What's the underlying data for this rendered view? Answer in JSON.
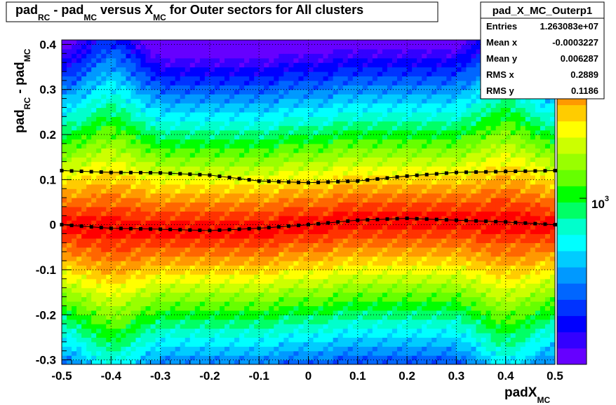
{
  "title": {
    "parts": [
      "pad",
      "RC",
      " - pad",
      "MC",
      " versus X",
      "MC",
      " for Outer sectors for All clusters"
    ]
  },
  "stats": {
    "name": "pad_X_MC_Outerp1",
    "rows": [
      {
        "label": "Entries",
        "value": "1.263083e+07"
      },
      {
        "label": "Mean x",
        "value": "-0.0003227"
      },
      {
        "label": "Mean y",
        "value": "0.006287"
      },
      {
        "label": "RMS x",
        "value": "0.2889"
      },
      {
        "label": "RMS y",
        "value": "0.1186"
      }
    ]
  },
  "palette_label": {
    "base": "10",
    "exponent": "3"
  },
  "chart_data": {
    "type": "heatmap",
    "xlabel": {
      "main": "padX",
      "sub": "MC"
    },
    "ylabel": {
      "p1": "pad",
      "s1": "RC",
      "p2": " - pad",
      "s2": "MC"
    },
    "xlim": [
      -0.5,
      0.5
    ],
    "ylim": [
      -0.31,
      0.41
    ],
    "x_ticks": [
      "-0.5",
      "-0.4",
      "-0.3",
      "-0.2",
      "-0.1",
      "0",
      "0.1",
      "0.2",
      "0.3",
      "0.4",
      "0.5"
    ],
    "y_ticks": [
      "-0.3",
      "-0.2",
      "-0.1",
      "0",
      "0.1",
      "0.2",
      "0.3",
      "0.4"
    ],
    "grid": true,
    "colorscale": "rainbow",
    "profile_upper": {
      "x": [
        -0.5,
        -0.4,
        -0.3,
        -0.2,
        -0.1,
        0.0,
        0.1,
        0.2,
        0.3,
        0.4,
        0.5
      ],
      "y": [
        0.12,
        0.116,
        0.115,
        0.11,
        0.097,
        0.093,
        0.097,
        0.108,
        0.116,
        0.118,
        0.12
      ]
    },
    "profile_lower": {
      "x": [
        -0.5,
        -0.4,
        -0.3,
        -0.2,
        -0.1,
        0.0,
        0.1,
        0.2,
        0.3,
        0.4,
        0.5
      ],
      "y": [
        0.0,
        -0.008,
        -0.01,
        -0.013,
        -0.008,
        0.0,
        0.01,
        0.014,
        0.01,
        0.006,
        0.0
      ]
    }
  }
}
